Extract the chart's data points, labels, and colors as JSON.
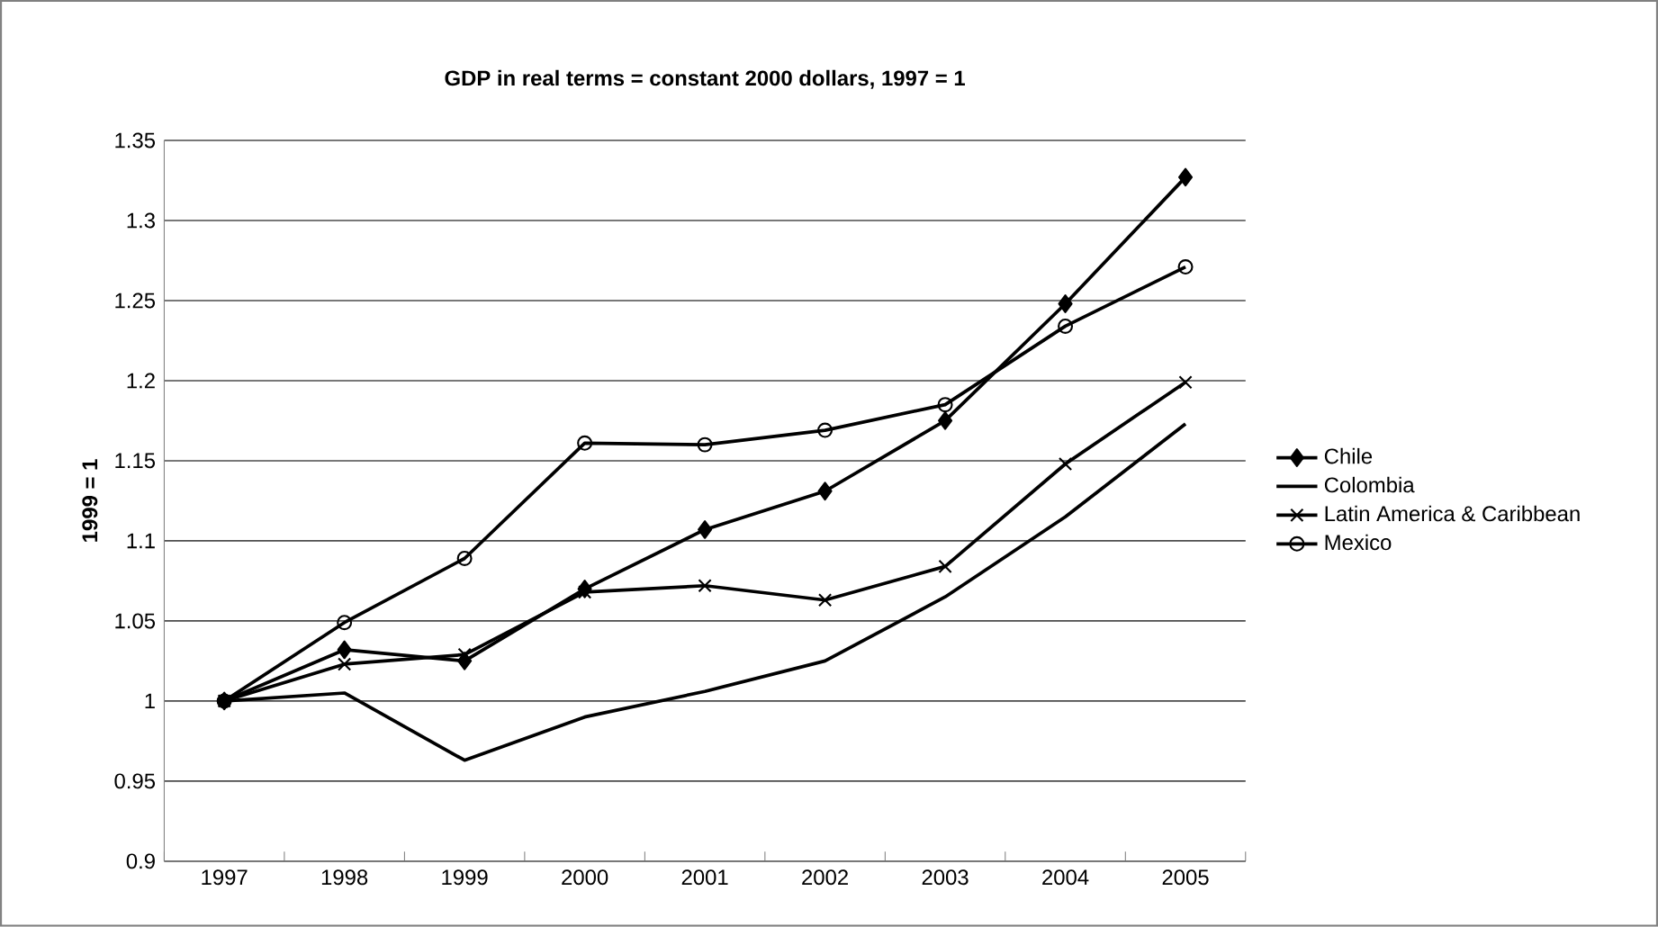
{
  "chart_data": {
    "type": "line",
    "title": "GDP in real terms = constant 2000 dollars, 1997 = 1",
    "ylabel": "1999 = 1",
    "categories": [
      "1997",
      "1998",
      "1999",
      "2000",
      "2001",
      "2002",
      "2003",
      "2004",
      "2005"
    ],
    "ylim": [
      0.9,
      1.35
    ],
    "yticks": [
      {
        "value": 0.9,
        "label": "0.9"
      },
      {
        "value": 0.95,
        "label": "0.95"
      },
      {
        "value": 1,
        "label": "1"
      },
      {
        "value": 1.05,
        "label": "1.05"
      },
      {
        "value": 1.1,
        "label": "1.1"
      },
      {
        "value": 1.15,
        "label": "1.15"
      },
      {
        "value": 1.2,
        "label": "1.2"
      },
      {
        "value": 1.25,
        "label": "1.25"
      },
      {
        "value": 1.3,
        "label": "1.3"
      },
      {
        "value": 1.35,
        "label": "1.35"
      }
    ],
    "grid": "y",
    "legend": "right",
    "series": [
      {
        "name": "Chile",
        "color": "#000000",
        "marker": "diamond",
        "values": [
          1,
          1.032,
          1.025,
          1.07,
          1.107,
          1.131,
          1.175,
          1.248,
          1.327
        ]
      },
      {
        "name": "Colombia",
        "color": "#000000",
        "marker": "none",
        "values": [
          1,
          1.005,
          0.963,
          0.99,
          1.006,
          1.025,
          1.065,
          1.115,
          1.173
        ]
      },
      {
        "name": "Latin America & Caribbean",
        "color": "#000000",
        "marker": "cross",
        "values": [
          1,
          1.023,
          1.029,
          1.068,
          1.072,
          1.063,
          1.084,
          1.148,
          1.199
        ]
      },
      {
        "name": "Mexico",
        "color": "#000000",
        "marker": "circle",
        "values": [
          1,
          1.049,
          1.089,
          1.161,
          1.16,
          1.169,
          1.185,
          1.234,
          1.271
        ]
      }
    ]
  }
}
